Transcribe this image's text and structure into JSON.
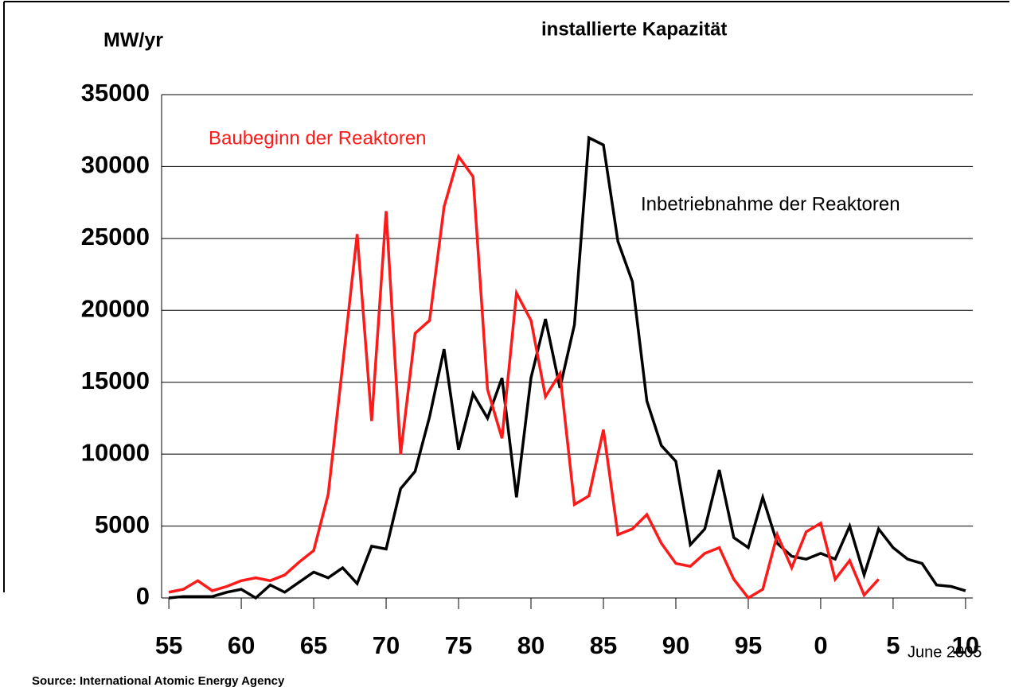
{
  "chart_data": {
    "type": "line",
    "title": "installierte Kapazität",
    "y_label": "MW/yr",
    "source": "Source: International Atomic Energy Agency",
    "date_note": "June 2005",
    "x": [
      1955,
      1956,
      1957,
      1958,
      1959,
      1960,
      1961,
      1962,
      1963,
      1964,
      1965,
      1966,
      1967,
      1968,
      1969,
      1970,
      1971,
      1972,
      1973,
      1974,
      1975,
      1976,
      1977,
      1978,
      1979,
      1980,
      1981,
      1982,
      1983,
      1984,
      1985,
      1986,
      1987,
      1988,
      1989,
      1990,
      1991,
      1992,
      1993,
      1994,
      1995,
      1996,
      1997,
      1998,
      1999,
      2000,
      2001,
      2002,
      2003,
      2004,
      2005,
      2006,
      2007,
      2008,
      2009,
      2010
    ],
    "series": [
      {
        "name": "Baubeginn der Reaktoren",
        "color": "#ff1a1a",
        "values": [
          400,
          600,
          1200,
          500,
          800,
          1200,
          1400,
          1200,
          1600,
          2500,
          3300,
          7200,
          16200,
          25300,
          12300,
          26900,
          10000,
          18400,
          19300,
          27200,
          30700,
          29300,
          14500,
          11100,
          21200,
          19300,
          14000,
          15600,
          6500,
          7100,
          11700,
          4400,
          4800,
          5800,
          3800,
          2400,
          2200,
          3100,
          3500,
          1300,
          0,
          600,
          4400,
          2100,
          4600,
          5200,
          1300,
          2600,
          200,
          1300,
          null,
          null,
          null,
          null,
          null,
          null
        ]
      },
      {
        "name": "Inbetriebnahme der Reaktoren",
        "color": "#000000",
        "values": [
          0,
          100,
          100,
          100,
          400,
          600,
          0,
          900,
          400,
          1100,
          1800,
          1400,
          2100,
          1000,
          3600,
          3400,
          7600,
          8800,
          12600,
          17300,
          10300,
          14200,
          12500,
          15300,
          7000,
          15300,
          19400,
          14600,
          19000,
          32000,
          31500,
          24800,
          22000,
          13700,
          10600,
          9500,
          3700,
          4800,
          8900,
          4200,
          3500,
          7000,
          3800,
          2900,
          2700,
          3100,
          2700,
          5000,
          1600,
          4800,
          3500,
          2700,
          2400,
          900,
          800,
          500
        ]
      }
    ],
    "xlim": [
      1954.5,
      2010.5
    ],
    "xticks": [
      {
        "value": 1955,
        "label": "55"
      },
      {
        "value": 1960,
        "label": "60"
      },
      {
        "value": 1965,
        "label": "65"
      },
      {
        "value": 1970,
        "label": "70"
      },
      {
        "value": 1975,
        "label": "75"
      },
      {
        "value": 1980,
        "label": "80"
      },
      {
        "value": 1985,
        "label": "85"
      },
      {
        "value": 1990,
        "label": "90"
      },
      {
        "value": 1995,
        "label": "95"
      },
      {
        "value": 2000,
        "label": "0"
      },
      {
        "value": 2005,
        "label": "5"
      },
      {
        "value": 2010,
        "label": "10"
      }
    ],
    "ylim": [
      0,
      35000
    ],
    "yticks": [
      0,
      5000,
      10000,
      15000,
      20000,
      25000,
      30000,
      35000
    ],
    "grid": true
  }
}
